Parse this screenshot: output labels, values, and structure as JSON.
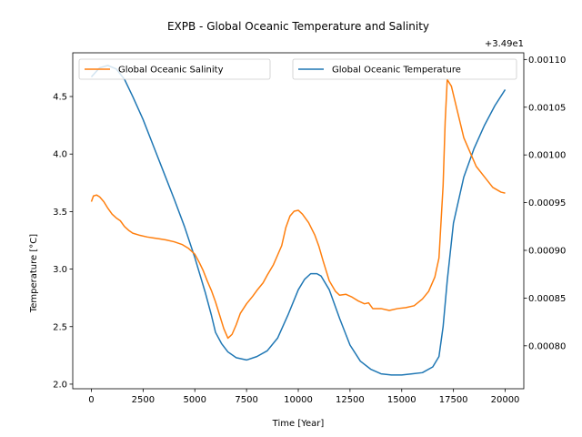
{
  "chart_data": {
    "type": "line",
    "title": "EXPB - Global Oceanic Temperature and Salinity",
    "xlabel": "Time [Year]",
    "ylabel": "Temperature [°C]",
    "y2label": "",
    "y2_offset_label": "+3.49e1",
    "xlim": [
      -900,
      20900
    ],
    "ylim": [
      1.96,
      4.88
    ],
    "y2lim": [
      0.000755,
      0.001107
    ],
    "x_ticks": [
      0,
      2500,
      5000,
      7500,
      10000,
      12500,
      15000,
      17500,
      20000
    ],
    "x_tick_labels": [
      "0",
      "2500",
      "5000",
      "7500",
      "10000",
      "12500",
      "15000",
      "17500",
      "20000"
    ],
    "y_ticks": [
      2.0,
      2.5,
      3.0,
      3.5,
      4.0,
      4.5
    ],
    "y_tick_labels": [
      "2.0",
      "2.5",
      "3.0",
      "3.5",
      "4.0",
      "4.5"
    ],
    "y2_ticks": [
      0.0008,
      0.00085,
      0.0009,
      0.00095,
      0.001,
      0.00105,
      0.0011
    ],
    "y2_tick_labels": [
      "0.00080",
      "0.00085",
      "0.00090",
      "0.00095",
      "0.00100",
      "0.00105",
      "0.00110"
    ],
    "grid": false,
    "legends": [
      {
        "placement": "upper-left",
        "entries": [
          "Global Oceanic Salinity"
        ]
      },
      {
        "placement": "upper-right",
        "entries": [
          "Global Oceanic Temperature"
        ]
      }
    ],
    "series": [
      {
        "name": "Global Oceanic Temperature",
        "axis": "left",
        "color": "#1f77b4",
        "x": [
          0,
          400,
          800,
          1200,
          1600,
          2000,
          2500,
          3000,
          3500,
          4000,
          4500,
          5000,
          5500,
          5800,
          6000,
          6300,
          6600,
          7000,
          7500,
          8000,
          8500,
          9000,
          9500,
          10000,
          10300,
          10600,
          10900,
          11100,
          11500,
          12000,
          12500,
          13000,
          13500,
          14000,
          14500,
          15000,
          15500,
          16000,
          16500,
          16800,
          17000,
          17200,
          17500,
          18000,
          18500,
          19000,
          19500,
          20000
        ],
        "y": [
          4.67,
          4.75,
          4.77,
          4.74,
          4.65,
          4.5,
          4.3,
          4.07,
          3.84,
          3.61,
          3.37,
          3.1,
          2.8,
          2.6,
          2.45,
          2.35,
          2.28,
          2.23,
          2.21,
          2.24,
          2.29,
          2.4,
          2.6,
          2.82,
          2.91,
          2.96,
          2.96,
          2.94,
          2.82,
          2.57,
          2.34,
          2.2,
          2.13,
          2.09,
          2.08,
          2.08,
          2.09,
          2.1,
          2.15,
          2.24,
          2.5,
          2.9,
          3.4,
          3.8,
          4.05,
          4.25,
          4.42,
          4.56
        ]
      },
      {
        "name": "Global Oceanic Salinity",
        "axis": "right",
        "color": "#ff7f0e",
        "x": [
          0,
          100,
          250,
          400,
          600,
          800,
          1000,
          1200,
          1400,
          1600,
          1800,
          2000,
          2300,
          2700,
          3000,
          3300,
          3600,
          4000,
          4400,
          4700,
          5000,
          5200,
          5400,
          5600,
          5800,
          6000,
          6200,
          6400,
          6600,
          6800,
          7000,
          7200,
          7500,
          7800,
          8000,
          8300,
          8500,
          8800,
          9000,
          9200,
          9400,
          9600,
          9800,
          10000,
          10200,
          10500,
          10800,
          11000,
          11200,
          11500,
          11800,
          12000,
          12300,
          12600,
          12900,
          13200,
          13400,
          13600,
          14000,
          14400,
          14800,
          15200,
          15600,
          16000,
          16300,
          16600,
          16800,
          17000,
          17100,
          17200,
          17400,
          17700,
          18000,
          18300,
          18600,
          19000,
          19400,
          19800,
          20000
        ],
        "y": [
          0.000951,
          0.000957,
          0.000958,
          0.000956,
          0.000951,
          0.000944,
          0.000938,
          0.000934,
          0.000931,
          0.000925,
          0.000921,
          0.000918,
          0.000916,
          0.000914,
          0.000913,
          0.000912,
          0.000911,
          0.000909,
          0.000906,
          0.000902,
          0.000896,
          0.000888,
          0.000879,
          0.000868,
          0.000858,
          0.000846,
          0.000832,
          0.000818,
          0.000808,
          0.000812,
          0.000822,
          0.000834,
          0.000844,
          0.000852,
          0.000858,
          0.000866,
          0.000874,
          0.000885,
          0.000895,
          0.000905,
          0.000924,
          0.000936,
          0.000941,
          0.000942,
          0.000938,
          0.000929,
          0.000916,
          0.000904,
          0.000889,
          0.000868,
          0.000857,
          0.000853,
          0.000854,
          0.000851,
          0.000847,
          0.000844,
          0.000845,
          0.000839,
          0.000839,
          0.000837,
          0.000839,
          0.00084,
          0.000842,
          0.000849,
          0.000857,
          0.000872,
          0.000892,
          0.000968,
          0.001035,
          0.001079,
          0.001072,
          0.001045,
          0.001018,
          0.001003,
          0.000988,
          0.000977,
          0.000966,
          0.000961,
          0.00096
        ]
      }
    ]
  }
}
